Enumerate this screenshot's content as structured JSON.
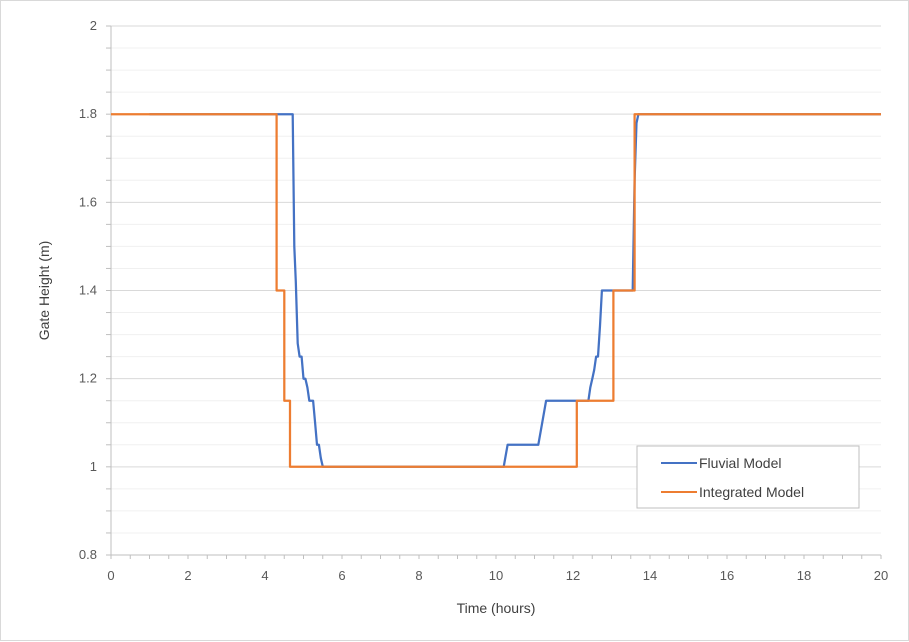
{
  "chart_data": {
    "type": "line",
    "title": "",
    "xlabel": "Time (hours)",
    "ylabel": "Gate Height (m)",
    "xlim": [
      0,
      20
    ],
    "ylim": [
      0.8,
      2
    ],
    "x_ticks": [
      0,
      2,
      4,
      6,
      8,
      10,
      12,
      14,
      16,
      18,
      20
    ],
    "y_ticks": [
      0.8,
      1,
      1.2,
      1.4,
      1.6,
      1.8,
      2
    ],
    "y_tick_labels": [
      "0.8",
      "1",
      "1.2",
      "1.4",
      "1.6",
      "1.8",
      "2"
    ],
    "grid": {
      "major_y": true,
      "minor_y": true,
      "major_x": false
    },
    "legend": {
      "placement": "bottom-right"
    },
    "series": [
      {
        "name": "Fluvial Model",
        "color": "#4472c4",
        "x": [
          1.0,
          4.65,
          4.72,
          4.74,
          4.76,
          4.8,
          4.85,
          4.9,
          4.95,
          5.0,
          5.05,
          5.1,
          5.15,
          5.2,
          5.25,
          5.3,
          5.35,
          5.4,
          5.45,
          5.5,
          5.55,
          5.6,
          10.2,
          10.3,
          11.1,
          11.2,
          11.3,
          12.4,
          12.45,
          12.5,
          12.55,
          12.6,
          12.65,
          12.7,
          12.75,
          12.8,
          13.55,
          13.6,
          13.65,
          13.7,
          20
        ],
        "y": [
          1.8,
          1.8,
          1.8,
          1.65,
          1.5,
          1.42,
          1.28,
          1.25,
          1.25,
          1.2,
          1.2,
          1.18,
          1.15,
          1.15,
          1.15,
          1.1,
          1.05,
          1.05,
          1.02,
          1.0,
          1.0,
          1.0,
          1.0,
          1.05,
          1.05,
          1.1,
          1.15,
          1.15,
          1.18,
          1.2,
          1.22,
          1.25,
          1.25,
          1.32,
          1.4,
          1.4,
          1.4,
          1.65,
          1.78,
          1.8,
          1.8
        ]
      },
      {
        "name": "Integrated Model",
        "color": "#ed7d31",
        "x": [
          0,
          4.3,
          4.3,
          4.5,
          4.5,
          4.65,
          4.65,
          12.1,
          12.1,
          13.05,
          13.05,
          13.6,
          13.6,
          20
        ],
        "y": [
          1.8,
          1.8,
          1.4,
          1.4,
          1.15,
          1.15,
          1.0,
          1.0,
          1.15,
          1.15,
          1.4,
          1.4,
          1.8,
          1.8
        ]
      }
    ]
  }
}
